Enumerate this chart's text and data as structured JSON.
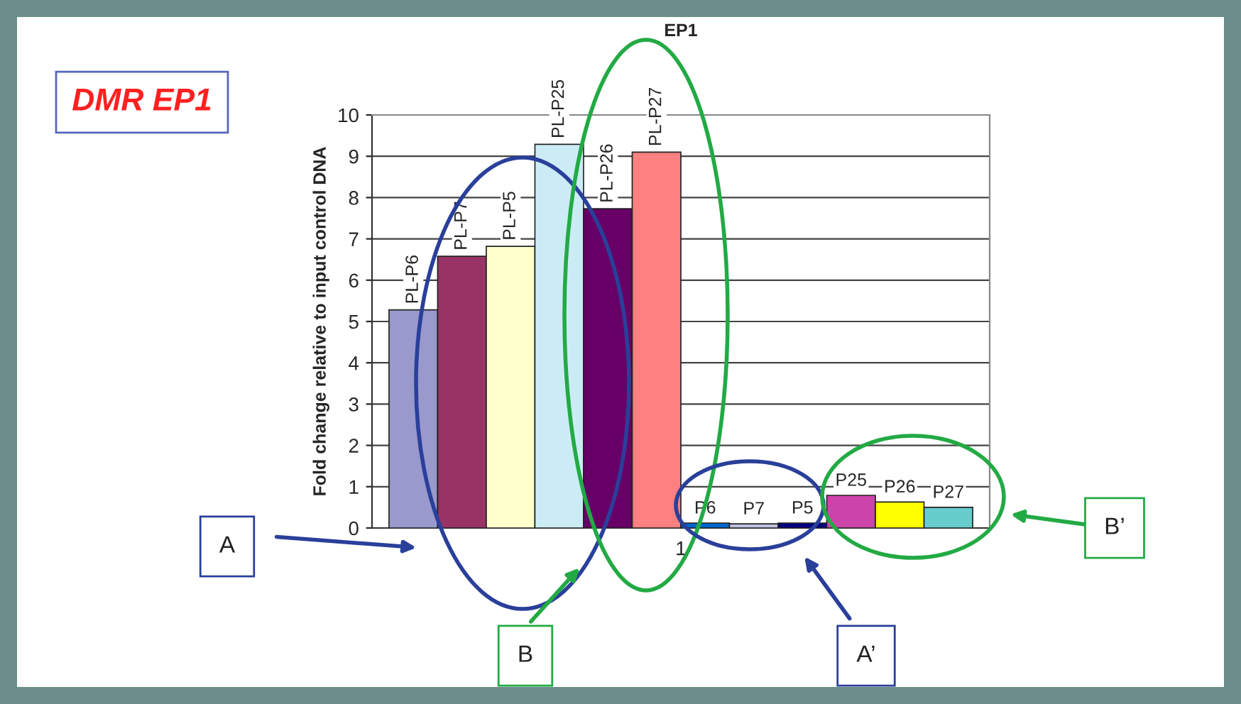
{
  "chart_data": {
    "type": "bar",
    "title": "EP1",
    "ylabel": "Fold change relative to input control DNA",
    "categories": [
      "1"
    ],
    "series": [
      {
        "name": "PL-P6",
        "color": "#9999cc",
        "values": [
          5.28
        ]
      },
      {
        "name": "PL-P7",
        "color": "#993366",
        "values": [
          6.58
        ]
      },
      {
        "name": "PL-P5",
        "color": "#ffffcc",
        "values": [
          6.82
        ]
      },
      {
        "name": "PL-P25",
        "color": "#ccecf5",
        "values": [
          9.29
        ]
      },
      {
        "name": "PL-P26",
        "color": "#660066",
        "values": [
          7.73
        ]
      },
      {
        "name": "PL-P27",
        "color": "#ff8080",
        "values": [
          9.1
        ]
      },
      {
        "name": "P6",
        "color": "#0066cc",
        "values": [
          0.12
        ]
      },
      {
        "name": "P7",
        "color": "#c0c0e0",
        "values": [
          0.1
        ]
      },
      {
        "name": "P5",
        "color": "#000080",
        "values": [
          0.12
        ]
      },
      {
        "name": "P25",
        "color": "#cc44aa",
        "values": [
          0.79
        ]
      },
      {
        "name": "P26",
        "color": "#ffff00",
        "values": [
          0.63
        ]
      },
      {
        "name": "P27",
        "color": "#66cccc",
        "values": [
          0.5
        ]
      }
    ],
    "ylim": [
      0,
      10
    ],
    "yticks": [
      0,
      1,
      2,
      3,
      4,
      5,
      6,
      7,
      8,
      9,
      10
    ],
    "grid": "y",
    "legend": false,
    "annotations": [
      "DMR EP1",
      "A",
      "B",
      "A’",
      "B’"
    ]
  }
}
